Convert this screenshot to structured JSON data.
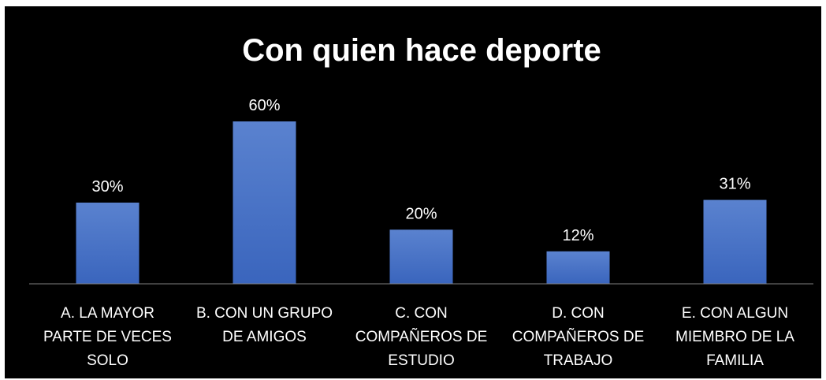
{
  "chart_data": {
    "type": "bar",
    "title": "Con quien hace deporte",
    "categories": [
      [
        "A. LA MAYOR",
        "PARTE DE VECES",
        "SOLO"
      ],
      [
        "B. CON UN GRUPO",
        "DE AMIGOS"
      ],
      [
        "C. CON",
        "COMPAÑEROS DE",
        "ESTUDIO"
      ],
      [
        "D. CON",
        "COMPAÑEROS DE",
        "TRABAJO"
      ],
      [
        "E. CON ALGUN",
        "MIEMBRO DE LA",
        "FAMILIA"
      ]
    ],
    "values": [
      30,
      60,
      20,
      12,
      31
    ],
    "data_labels": [
      "30%",
      "60%",
      "20%",
      "12%",
      "31%"
    ],
    "ylim": [
      0,
      60
    ],
    "grid": false,
    "legend": "none",
    "colors": {
      "background": "#000000",
      "bar_top": "#5a82cf",
      "bar_bottom": "#3a65bd",
      "axis": "#7f7f7f",
      "text": "#ffffff"
    }
  }
}
